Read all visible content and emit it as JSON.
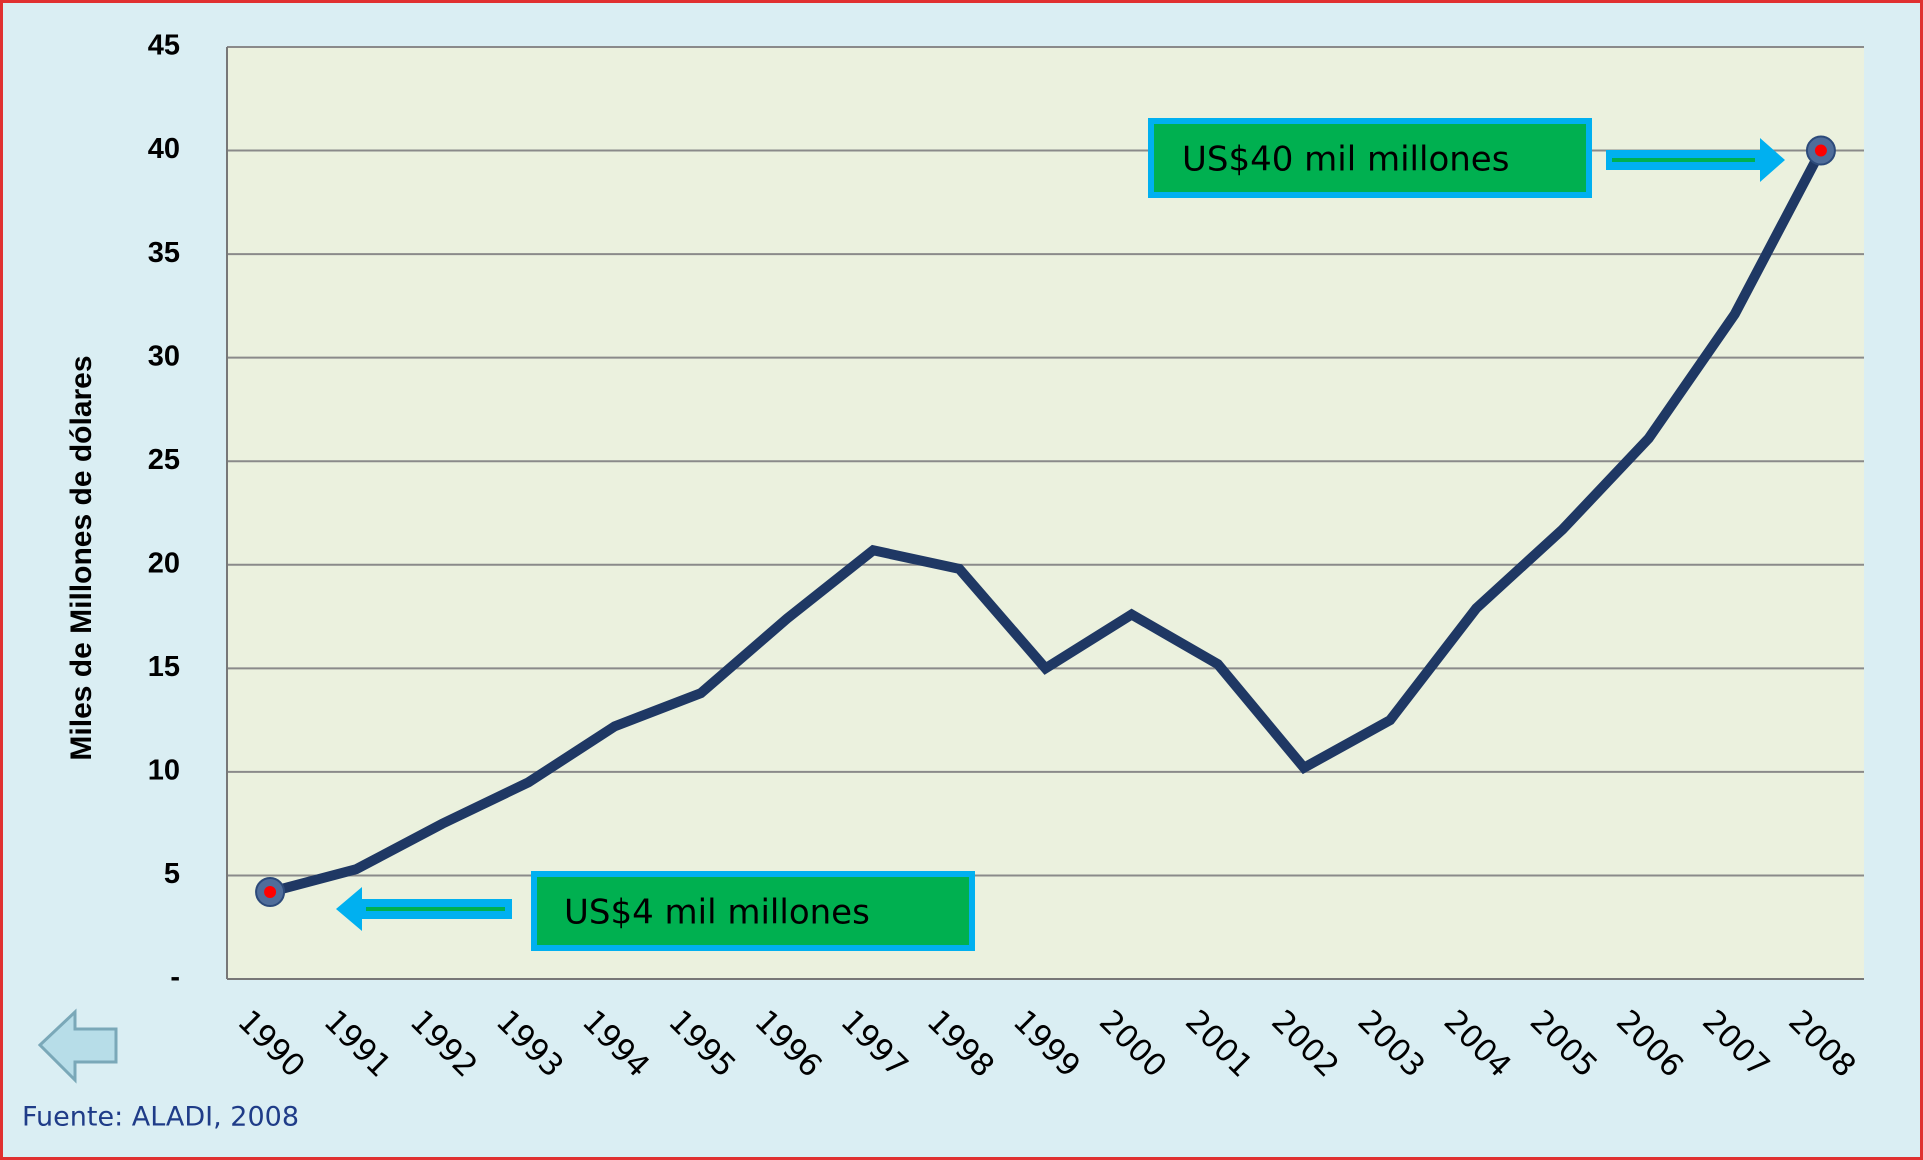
{
  "chart_data": {
    "type": "line",
    "y_label": "Miles de Millones de dólares",
    "categories": [
      "1990",
      "1991",
      "1992",
      "1993",
      "1994",
      "1995",
      "1996",
      "1997",
      "1998",
      "1999",
      "2000",
      "2001",
      "2002",
      "2003",
      "2004",
      "2005",
      "2006",
      "2007",
      "2008"
    ],
    "series": [
      {
        "color": "#1f3864",
        "values": [
          4.2,
          5.3,
          7.5,
          9.5,
          12.2,
          13.8,
          17.4,
          20.7,
          19.8,
          15.0,
          17.6,
          15.2,
          10.2,
          12.5,
          17.9,
          21.7,
          26.1,
          32.1,
          40.0
        ]
      }
    ],
    "ylim": [
      0,
      45
    ],
    "yticks": [
      {
        "value": 0,
        "label": "-"
      },
      5,
      10,
      15,
      20,
      25,
      30,
      35,
      40,
      45
    ],
    "grid": true,
    "annotations": [
      "US$40 mil millones",
      "US$4 mil millones"
    ],
    "source": "Fuente: ALADI, 2008"
  }
}
